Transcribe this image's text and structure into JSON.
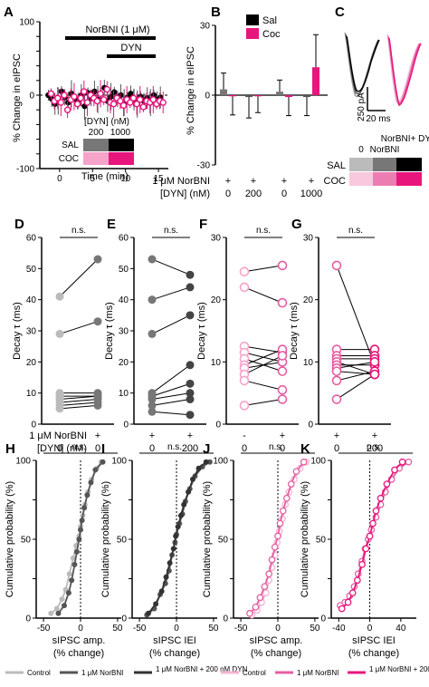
{
  "colors": {
    "sal": "#000000",
    "coc": "#e8157c",
    "grey_light": "#bbbbbb",
    "grey_mid": "#777777",
    "grey_dark": "#333333",
    "pink_light": "#f5b3d2",
    "pink_mid": "#e45fa3",
    "pink_dark": "#e8157c"
  },
  "panel_A": {
    "letter": "A",
    "ylabel": "% Change in eIPSC",
    "xlabel": "Time (min)",
    "norbni_label": "NorBNI (1 μM)",
    "dyn_label": "DYN",
    "legend_title": "[DYN] (nM)",
    "legend_cols": [
      "200",
      "1000"
    ],
    "legend_rows": [
      "SAL",
      "COC"
    ]
  },
  "panel_B": {
    "letter": "B",
    "ylabel": "% Change in eIPSC",
    "legend": [
      "Sal",
      "Coc"
    ],
    "row1_label": "1 μM NorBNI",
    "row2_label": "[DYN] (nM)",
    "row1_values": [
      "+",
      "+",
      "+",
      "+"
    ],
    "row2_values": [
      "0",
      "200",
      "0",
      "1000"
    ]
  },
  "panel_C": {
    "letter": "C",
    "scale_y": "250 pA",
    "scale_x": "20 ms",
    "heat_cols": [
      "0",
      "NorBNI",
      "NorBNI+ DYN"
    ],
    "heat_rows": [
      "SAL",
      "COC"
    ]
  },
  "decay_panels": [
    {
      "letter": "D",
      "ns": "n.s."
    },
    {
      "letter": "E",
      "ns": "n.s."
    },
    {
      "letter": "F",
      "ns": "n.s."
    },
    {
      "letter": "G",
      "ns": "n.s."
    }
  ],
  "decay_ylabel": "Decay τ (ms)",
  "decay_row1_label": "1 μM NorBNI",
  "decay_row2_label": "[DYN] (nM)",
  "decay_row1_values": [
    [
      "-",
      "+"
    ],
    [
      "+",
      "+"
    ],
    [
      "-",
      "+"
    ],
    [
      "+",
      "+"
    ]
  ],
  "decay_row2_values": [
    [
      "0",
      "0"
    ],
    [
      "0",
      "200"
    ],
    [
      "0",
      "0"
    ],
    [
      "0",
      "200"
    ]
  ],
  "cum_panels": [
    {
      "letter": "H",
      "ns": "n.s.",
      "xlabel1": "sIPSC amp.",
      "xlabel2": "(% change)"
    },
    {
      "letter": "I",
      "ns": "n.s.",
      "xlabel1": "sIPSC IEI",
      "xlabel2": "(% change)"
    },
    {
      "letter": "J",
      "ns": "n.s.",
      "xlabel1": "sIPSC amp.",
      "xlabel2": "(% change)"
    },
    {
      "letter": "K",
      "ns": "n.s.",
      "xlabel1": "sIPSC IEI",
      "xlabel2": "(% change)"
    }
  ],
  "cum_ylabel": "Cumulative probability (%)",
  "legend_bottom": {
    "grey": [
      "Control",
      "1 μM NorBNI",
      "1 μM NorBNI + 200 nM DYN"
    ],
    "pink": [
      "Control",
      "1 μM NorBNI",
      "1 μM NorBNI + 200 nM DYN"
    ]
  },
  "chart_data": [
    {
      "type": "scatter",
      "panel": "A",
      "xlabel": "Time (min)",
      "ylabel": "% Change in eIPSC",
      "xticks": [
        0,
        5,
        10,
        15
      ],
      "yticks": [
        -100,
        -80,
        -60,
        -40,
        -20,
        0,
        20,
        40,
        60,
        80,
        100
      ],
      "xlim": [
        -3,
        16.5
      ],
      "ylim": [
        -100,
        100
      ],
      "series": [
        {
          "name": "SAL",
          "x": [
            -1.5,
            -1,
            -0.5,
            0,
            0.5,
            1,
            1.5,
            2,
            2.5,
            3,
            3.5,
            4,
            4.5,
            5,
            5.5,
            6,
            6.5,
            7,
            7.5,
            8,
            8.5,
            9,
            9.5,
            10,
            10.5,
            11,
            11.5,
            12,
            12.5,
            13,
            13.5,
            14,
            14.5,
            15,
            15.5
          ],
          "y": [
            0,
            -5,
            -12,
            -8,
            5,
            -3,
            -10,
            2,
            -5,
            -8,
            0,
            -15,
            3,
            -4,
            5,
            -6,
            2,
            10,
            -8,
            -2,
            4,
            -5,
            0,
            -10,
            -3,
            2,
            -6,
            -12,
            -2,
            -8,
            -4,
            -10,
            0,
            -6,
            -3
          ]
        },
        {
          "name": "COC",
          "x": [
            -1.5,
            -1,
            -0.5,
            0,
            0.5,
            1,
            1.5,
            2,
            2.5,
            3,
            3.5,
            4,
            4.5,
            5,
            5.5,
            6,
            6.5,
            7,
            7.5,
            8,
            8.5,
            9,
            9.5,
            10,
            10.5,
            11,
            11.5,
            12,
            12.5,
            13,
            13.5,
            14,
            14.5,
            15,
            15.5
          ],
          "y": [
            2,
            -8,
            -4,
            -10,
            0,
            -20,
            -6,
            -2,
            -12,
            -4,
            5,
            -10,
            0,
            -4,
            -8,
            2,
            -6,
            8,
            -10,
            -12,
            -4,
            -8,
            -14,
            -6,
            -10,
            -4,
            -12,
            -6,
            -16,
            -8,
            -10,
            -6,
            -12,
            -8,
            -10
          ]
        }
      ]
    },
    {
      "type": "bar",
      "panel": "B",
      "ylabel": "% Change in eIPSC",
      "yticks": [
        -30,
        0,
        30
      ],
      "ylim": [
        -30,
        30
      ],
      "categories": [
        "0",
        "200",
        "0",
        "1000"
      ],
      "series": [
        {
          "name": "Sal",
          "values": [
            2.5,
            -0.8,
            1.5,
            -0.8
          ],
          "err": [
            7,
            9,
            5,
            8
          ]
        },
        {
          "name": "Coc",
          "values": [
            -0.5,
            -0.5,
            -0.8,
            12
          ],
          "err": [
            8,
            7,
            8,
            14
          ]
        }
      ]
    },
    {
      "type": "scatter",
      "panel": "D",
      "ylabel": "Decay τ (ms)",
      "yticks": [
        0,
        10,
        20,
        30,
        40,
        50,
        60
      ],
      "ylim": [
        0,
        60
      ],
      "pairs": [
        [
          41,
          53
        ],
        [
          29,
          33
        ],
        [
          10,
          10
        ],
        [
          9,
          9
        ],
        [
          8,
          9
        ],
        [
          7,
          8
        ],
        [
          6,
          7
        ],
        [
          5,
          6
        ]
      ]
    },
    {
      "type": "scatter",
      "panel": "E",
      "ylabel": "Decay τ (ms)",
      "yticks": [
        0,
        10,
        20,
        30,
        40,
        50,
        60
      ],
      "ylim": [
        0,
        60
      ],
      "pairs": [
        [
          53,
          48
        ],
        [
          40,
          44
        ],
        [
          29,
          35
        ],
        [
          10,
          19
        ],
        [
          9,
          13
        ],
        [
          8,
          10
        ],
        [
          6,
          8
        ],
        [
          4,
          3
        ]
      ]
    },
    {
      "type": "scatter",
      "panel": "F",
      "ylabel": "Decay τ (ms)",
      "yticks": [
        0,
        10,
        20,
        30
      ],
      "ylim": [
        0,
        30
      ],
      "pairs": [
        [
          24.5,
          25.5
        ],
        [
          22,
          19.5
        ],
        [
          12.5,
          11.5
        ],
        [
          11.5,
          10
        ],
        [
          10.5,
          8.5
        ],
        [
          9.5,
          12
        ],
        [
          9,
          10
        ],
        [
          8,
          11
        ],
        [
          7,
          5.5
        ],
        [
          3,
          4
        ]
      ]
    },
    {
      "type": "scatter",
      "panel": "G",
      "ylabel": "Decay τ (ms)",
      "yticks": [
        0,
        10,
        20,
        30
      ],
      "ylim": [
        0,
        30
      ],
      "pairs": [
        [
          25.5,
          9.5
        ],
        [
          12,
          12
        ],
        [
          11,
          11
        ],
        [
          10.5,
          10.5
        ],
        [
          10,
          8
        ],
        [
          9.5,
          9.5
        ],
        [
          9,
          10
        ],
        [
          8.5,
          8
        ],
        [
          7,
          8.5
        ],
        [
          4,
          8
        ]
      ]
    },
    {
      "type": "line",
      "panel": "H",
      "xlabel": "sIPSC amp. (% change)",
      "ylabel": "Cumulative probability (%)",
      "xticks": [
        -50,
        0,
        50
      ],
      "xlim": [
        -55,
        55
      ],
      "yticks": [
        0,
        25,
        50,
        75,
        100
      ],
      "ylim": [
        0,
        100
      ],
      "series": [
        {
          "name": "Control",
          "x": [
            -40,
            -32,
            -25,
            -20,
            -15,
            -10,
            -6,
            -2,
            0,
            3,
            6,
            10,
            15,
            22,
            28
          ],
          "y": [
            3,
            6,
            12,
            18,
            28,
            38,
            46,
            52,
            58,
            65,
            72,
            80,
            88,
            95,
            99
          ]
        },
        {
          "name": "1 μM NorBNI",
          "x": [
            -30,
            -22,
            -16,
            -12,
            -8,
            -5,
            -2,
            0,
            2,
            5,
            9,
            14,
            20,
            30
          ],
          "y": [
            3,
            8,
            16,
            24,
            34,
            42,
            50,
            56,
            62,
            70,
            78,
            86,
            94,
            99
          ]
        }
      ]
    },
    {
      "type": "line",
      "panel": "I",
      "xlabel": "sIPSC IEI (% change)",
      "ylabel": "Cumulative probability (%)",
      "xticks": [
        -50,
        0,
        50
      ],
      "xlim": [
        -55,
        55
      ],
      "yticks": [
        0,
        25,
        50,
        75,
        100
      ],
      "ylim": [
        0,
        100
      ],
      "series": [
        {
          "name": "1 μM NorBNI",
          "x": [
            -40,
            -30,
            -22,
            -15,
            -10,
            -6,
            -2,
            0,
            4,
            8,
            12,
            18,
            25,
            35,
            45
          ],
          "y": [
            2,
            6,
            15,
            22,
            30,
            40,
            48,
            53,
            60,
            66,
            74,
            82,
            90,
            96,
            99
          ]
        },
        {
          "name": "1 μM NorBNI + 200 nM DYN",
          "x": [
            -38,
            -28,
            -20,
            -14,
            -9,
            -4,
            -1,
            2,
            6,
            10,
            16,
            22,
            30,
            40
          ],
          "y": [
            3,
            9,
            17,
            26,
            35,
            44,
            52,
            58,
            65,
            72,
            80,
            88,
            95,
            99
          ]
        }
      ]
    },
    {
      "type": "line",
      "panel": "J",
      "xlabel": "sIPSC amp. (% change)",
      "ylabel": "Cumulative probability (%)",
      "xticks": [
        -50,
        0,
        50
      ],
      "xlim": [
        -55,
        55
      ],
      "yticks": [
        0,
        25,
        50,
        75,
        100
      ],
      "ylim": [
        0,
        100
      ],
      "series": [
        {
          "name": "Control",
          "x": [
            -35,
            -28,
            -22,
            -16,
            -12,
            -8,
            -4,
            -1,
            2,
            6,
            10,
            15,
            22,
            30,
            38
          ],
          "y": [
            2,
            5,
            10,
            16,
            24,
            32,
            40,
            48,
            55,
            63,
            72,
            80,
            88,
            95,
            99
          ]
        },
        {
          "name": "1 μM NorBNI",
          "x": [
            -38,
            -30,
            -24,
            -18,
            -12,
            -8,
            -4,
            0,
            3,
            7,
            12,
            18,
            25,
            35
          ],
          "y": [
            3,
            7,
            13,
            20,
            28,
            37,
            45,
            52,
            60,
            68,
            76,
            85,
            93,
            99
          ]
        }
      ]
    },
    {
      "type": "line",
      "panel": "K",
      "xlabel": "sIPSC IEI (% change)",
      "ylabel": "Cumulative probability (%)",
      "xticks": [
        -40,
        0,
        40
      ],
      "xlim": [
        -45,
        60
      ],
      "yticks": [
        0,
        25,
        50,
        75,
        100
      ],
      "ylim": [
        0,
        100
      ],
      "series": [
        {
          "name": "1 μM NorBNI",
          "x": [
            -38,
            -32,
            -26,
            -20,
            -15,
            -10,
            -6,
            -2,
            2,
            8,
            14,
            20,
            28,
            38,
            50
          ],
          "y": [
            8,
            10,
            14,
            20,
            28,
            36,
            44,
            50,
            56,
            64,
            72,
            80,
            88,
            95,
            99
          ]
        },
        {
          "name": "1 μM NorBNI + 200 nM DYN",
          "x": [
            -36,
            -28,
            -22,
            -16,
            -10,
            -5,
            0,
            4,
            8,
            14,
            22,
            32,
            42
          ],
          "y": [
            6,
            10,
            16,
            24,
            34,
            44,
            52,
            60,
            68,
            76,
            85,
            94,
            99
          ]
        }
      ]
    }
  ]
}
